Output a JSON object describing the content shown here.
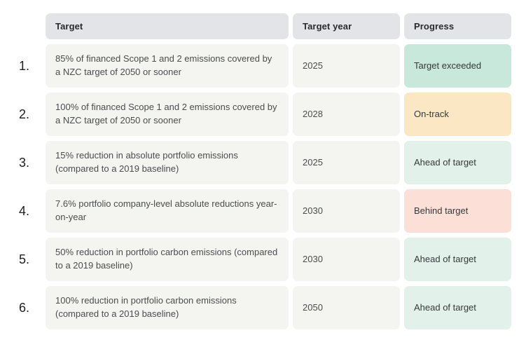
{
  "chart_data": {
    "type": "table",
    "columns": [
      "Target",
      "Target year",
      "Progress"
    ],
    "rows": [
      {
        "num": "1.",
        "target": "85% of financed Scope 1 and 2 emissions covered by a NZC target of 2050 or sooner",
        "target_year": "2025",
        "progress": "Target exceeded",
        "status": "target-exceeded"
      },
      {
        "num": "2.",
        "target": "100% of financed Scope 1 and 2 emissions covered by a NZC target of 2050 or sooner",
        "target_year": "2028",
        "progress": "On-track",
        "status": "on-track"
      },
      {
        "num": "3.",
        "target": "15% reduction in absolute portfolio emissions (compared to a 2019 baseline)",
        "target_year": "2025",
        "progress": "Ahead of target",
        "status": "ahead-of-target"
      },
      {
        "num": "4.",
        "target": "7.6% portfolio company-level absolute reductions year-on-year",
        "target_year": "2030",
        "progress": "Behind target",
        "status": "behind-target"
      },
      {
        "num": "5.",
        "target": "50% reduction in portfolio carbon emissions (compared to a 2019 baseline)",
        "target_year": "2030",
        "progress": "Ahead of target",
        "status": "ahead-of-target"
      },
      {
        "num": "6.",
        "target": "100% reduction in portfolio carbon emissions (compared to a 2019 baseline)",
        "target_year": "2050",
        "progress": "Ahead of target",
        "status": "ahead-of-target"
      }
    ]
  },
  "colors": {
    "header_bg": "#e3e4e7",
    "cell_bg": "#f4f5f0",
    "status": {
      "target-exceeded": "#c8e8db",
      "on-track": "#fbe7c3",
      "ahead-of-target": "#e2f1ea",
      "behind-target": "#fcdfd7"
    }
  }
}
